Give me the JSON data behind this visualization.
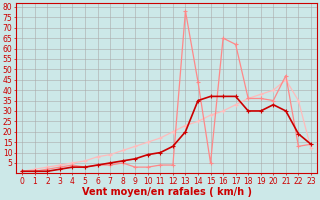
{
  "bg_color": "#cce8e8",
  "grid_color": "#aaaaaa",
  "xlabel": "Vent moyen/en rafales ( km/h )",
  "xlabel_color": "#cc0000",
  "xlabel_fontsize": 7,
  "ylabel_ticks": [
    5,
    10,
    15,
    20,
    25,
    30,
    35,
    40,
    45,
    50,
    55,
    60,
    65,
    70,
    75,
    80
  ],
  "xticks": [
    0,
    1,
    2,
    3,
    4,
    5,
    6,
    7,
    8,
    9,
    10,
    11,
    12,
    13,
    14,
    15,
    16,
    17,
    18,
    19,
    20,
    21,
    22,
    23
  ],
  "xlim": [
    -0.5,
    23.5
  ],
  "ylim": [
    0,
    82
  ],
  "line1_x": [
    0,
    1,
    2,
    3,
    4,
    5,
    6,
    7,
    8,
    9,
    10,
    11,
    12,
    13,
    14,
    15,
    16,
    17,
    18,
    19,
    20,
    21,
    22,
    23
  ],
  "line1_y": [
    1,
    1,
    1,
    2,
    3,
    3,
    4,
    5,
    6,
    7,
    9,
    10,
    13,
    20,
    35,
    37,
    37,
    37,
    30,
    30,
    33,
    30,
    19,
    14
  ],
  "line1_color": "#cc0000",
  "line1_lw": 1.2,
  "line2_x": [
    0,
    1,
    2,
    3,
    4,
    5,
    6,
    7,
    8,
    9,
    10,
    11,
    12,
    13,
    14,
    15,
    16,
    17,
    18,
    19,
    20,
    21,
    22,
    23
  ],
  "line2_y": [
    1,
    1,
    2,
    3,
    4,
    3,
    4,
    4,
    5,
    3,
    3,
    4,
    4,
    78,
    44,
    5,
    65,
    62,
    36,
    36,
    35,
    47,
    13,
    14
  ],
  "line2_color": "#ff8888",
  "line2_lw": 0.9,
  "line3_x": [
    0,
    1,
    2,
    3,
    4,
    5,
    6,
    7,
    8,
    9,
    10,
    11,
    12,
    13,
    14,
    15,
    16,
    17,
    18,
    19,
    20,
    21,
    22,
    23
  ],
  "line3_y": [
    1,
    2,
    3,
    4,
    5,
    6,
    8,
    9,
    11,
    13,
    15,
    17,
    20,
    23,
    25,
    28,
    30,
    33,
    36,
    38,
    40,
    45,
    35,
    12
  ],
  "line3_color": "#ffbbbb",
  "line3_lw": 0.9,
  "marker": "+",
  "markersize": 3,
  "markeredgewidth": 0.8,
  "tick_color": "#cc0000",
  "tick_fontsize": 5.5,
  "spine_color": "#cc0000",
  "spine_lw": 0.8
}
